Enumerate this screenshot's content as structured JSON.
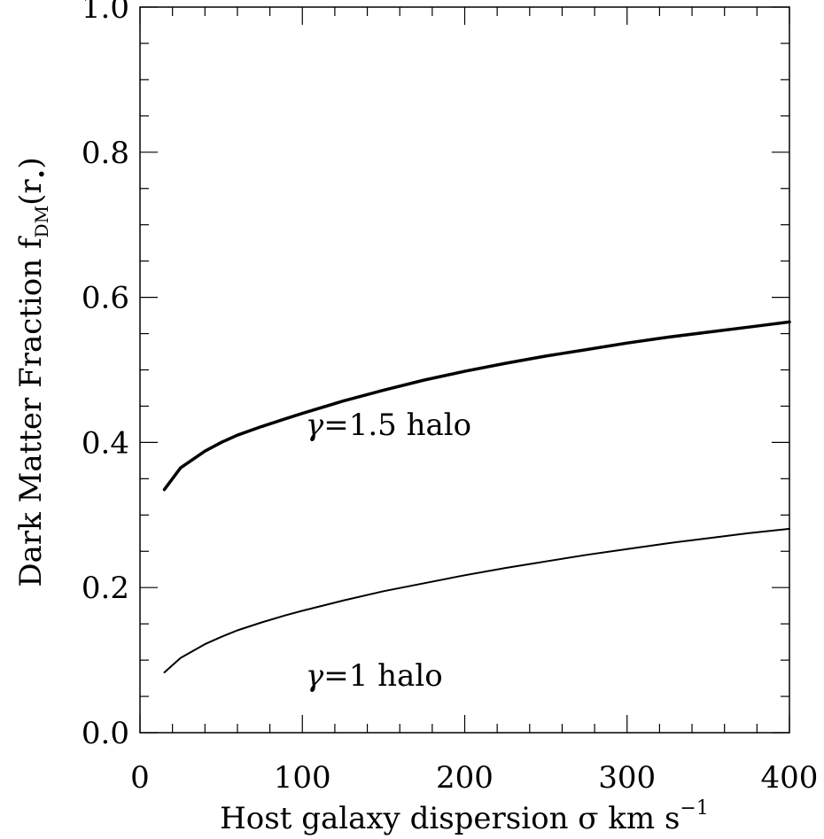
{
  "chart_data": {
    "type": "line",
    "xlabel": "Host galaxy dispersion σ km s",
    "xlabel_exponent": "−1",
    "ylabel_main": "Dark Matter Fraction f",
    "ylabel_sub": "DM",
    "ylabel_tail": "(r",
    "ylabel_star": "•",
    "ylabel_close": ")",
    "xlim": [
      0,
      400
    ],
    "ylim": [
      0.0,
      1.0
    ],
    "x_ticks_major": [
      0,
      100,
      200,
      300,
      400
    ],
    "x_tick_labels": [
      "0",
      "100",
      "200",
      "300",
      "400"
    ],
    "x_ticks_minor_step": 20,
    "y_ticks_major": [
      0.0,
      0.2,
      0.4,
      0.6,
      0.8,
      1.0
    ],
    "y_tick_labels": [
      "0.0",
      "0.2",
      "0.4",
      "0.6",
      "0.8",
      "1.0"
    ],
    "y_ticks_minor_step": 0.05,
    "grid": false,
    "series": [
      {
        "name": "γ=1.5 halo",
        "line_weight": "thick",
        "x": [
          15,
          25,
          40,
          50,
          60,
          75,
          90,
          100,
          125,
          150,
          175,
          200,
          225,
          250,
          275,
          300,
          325,
          350,
          375,
          400
        ],
        "y": [
          0.335,
          0.365,
          0.388,
          0.4,
          0.41,
          0.422,
          0.433,
          0.44,
          0.457,
          0.472,
          0.486,
          0.498,
          0.509,
          0.519,
          0.528,
          0.537,
          0.545,
          0.552,
          0.559,
          0.566
        ]
      },
      {
        "name": "γ=1 halo",
        "line_weight": "thin",
        "x": [
          15,
          25,
          40,
          50,
          60,
          75,
          90,
          100,
          125,
          150,
          175,
          200,
          225,
          250,
          275,
          300,
          325,
          350,
          375,
          400
        ],
        "y": [
          0.083,
          0.103,
          0.122,
          0.132,
          0.141,
          0.152,
          0.162,
          0.168,
          0.182,
          0.195,
          0.206,
          0.217,
          0.227,
          0.236,
          0.245,
          0.253,
          0.261,
          0.268,
          0.275,
          0.281
        ]
      }
    ],
    "annotations": [
      {
        "text_greek": "γ",
        "text_rest": "=1.5 halo",
        "x": 102,
        "y": 0.41
      },
      {
        "text_greek": "γ",
        "text_rest": "=1 halo",
        "x": 102,
        "y": 0.065
      }
    ]
  }
}
